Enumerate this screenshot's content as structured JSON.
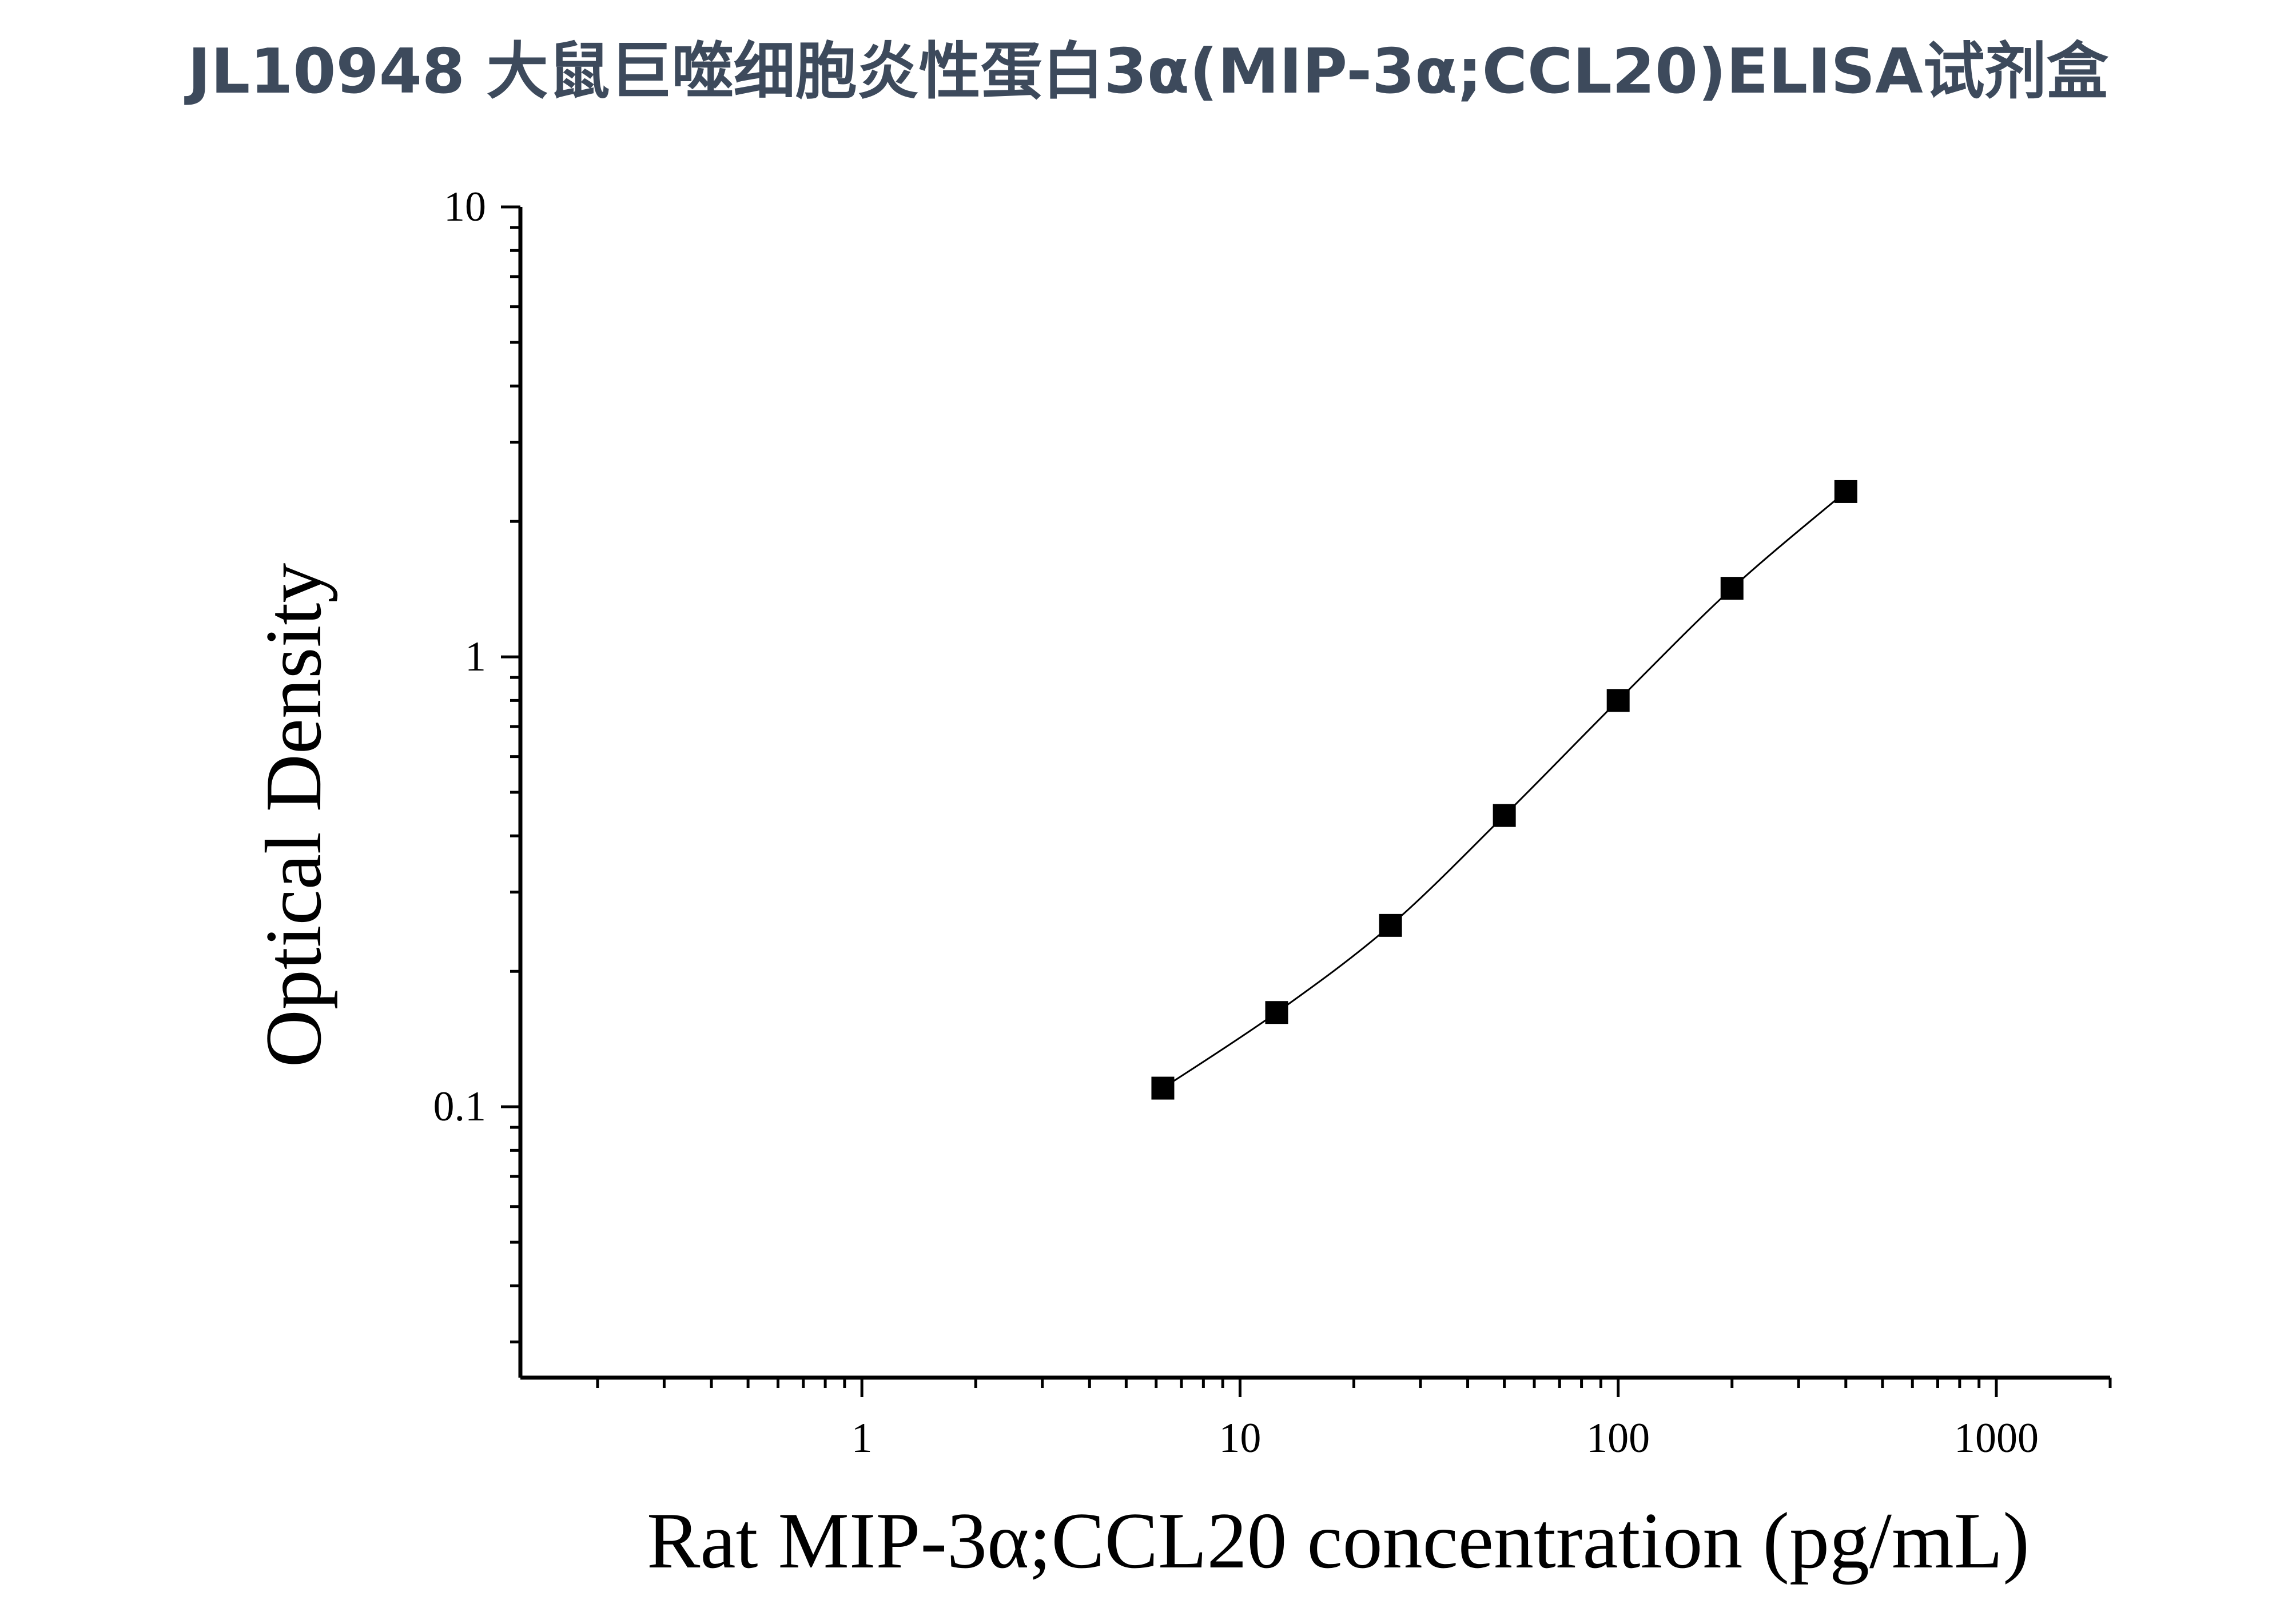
{
  "title": "JL10948 大鼠巨噬细胞炎性蛋白3α(MIP-3α;CCL20)ELISA试剂盒",
  "chart_data": {
    "type": "scatter",
    "title": "JL10948 大鼠巨噬细胞炎性蛋白3α(MIP-3α;CCL20)ELISA试剂盒",
    "xlabel": "Rat MIP-3α;CCL20 concentration (pg/mL)",
    "ylabel": "Optical Density",
    "xscale": "log",
    "yscale": "log",
    "xlim": [
      0.125,
      2000
    ],
    "ylim": [
      0.025,
      10
    ],
    "x_ticks": [
      1,
      10,
      100,
      1000
    ],
    "x_tick_labels": [
      "1",
      "10",
      "100",
      "1000"
    ],
    "y_ticks": [
      0.1,
      1,
      10
    ],
    "y_tick_labels": [
      "0.1",
      "1",
      "10"
    ],
    "grid": false,
    "legend": "none",
    "marker": "square",
    "line": "smooth fit curve",
    "color": "#000000",
    "series": [
      {
        "x": [
          6.25,
          12.5,
          25,
          50,
          100,
          200,
          400
        ],
        "y": [
          0.11,
          0.162,
          0.253,
          0.444,
          0.8,
          1.42,
          2.33
        ]
      }
    ]
  }
}
